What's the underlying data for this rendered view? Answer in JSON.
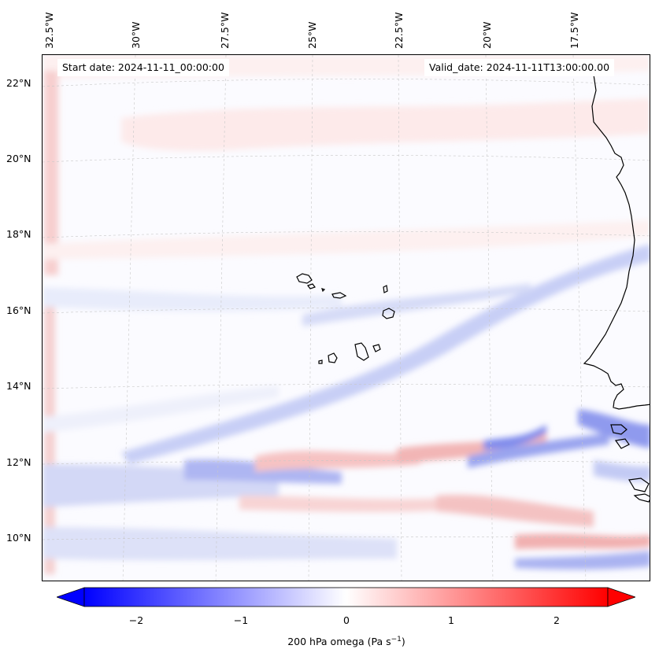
{
  "map": {
    "start_date": "Start date: 2024-11-11_00:00:00",
    "valid_date": "Valid_date: 2024-11-11T13:00:00.00",
    "lon_labels": [
      "32.5°W",
      "30°W",
      "27.5°W",
      "25°W",
      "22.5°W",
      "20°W",
      "17.5°W"
    ],
    "lat_labels": [
      "22°N",
      "20°N",
      "18°N",
      "16°N",
      "14°N",
      "12°N",
      "10°N"
    ],
    "field": "200 hPa omega",
    "colormap": [
      "#0000ff",
      "#ffffff",
      "#ff0000"
    ],
    "coastline_color": "#000000"
  },
  "colorbar": {
    "ticks": [
      "−2",
      "−1",
      "0",
      "1",
      "2"
    ],
    "label": "200 hPa omega (Pa s",
    "label_exp": "−1",
    "label_close": ")",
    "range": [
      -2.75,
      2.75
    ],
    "extend": "both"
  }
}
